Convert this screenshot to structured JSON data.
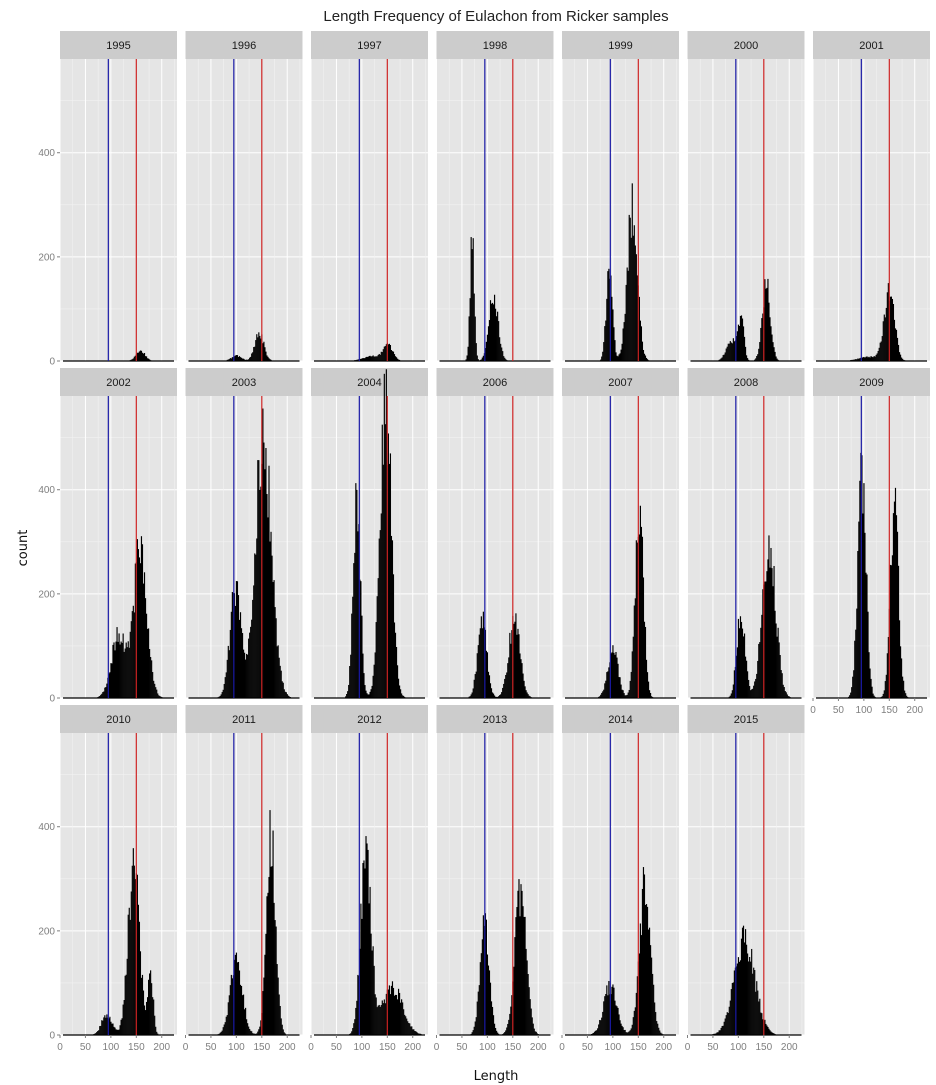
{
  "chart_data": {
    "type": "bar",
    "title": "Length Frequency of Eulachon from Ricker samples",
    "xlabel": "Length",
    "ylabel": "count",
    "xlim": [
      0,
      230
    ],
    "ylim": [
      0,
      580
    ],
    "x_ticks": [
      "0",
      "50",
      "100",
      "150",
      "200"
    ],
    "y_ticks": [
      "0",
      "200",
      "400"
    ],
    "reference_lines": [
      {
        "x": 95,
        "color": "#1a1aa6"
      },
      {
        "x": 150,
        "color": "#cc2222"
      }
    ],
    "panels": [
      {
        "label": "1995",
        "components": [
          [
            158,
            9,
            20
          ]
        ]
      },
      {
        "label": "1996",
        "components": [
          [
            100,
            10,
            10
          ],
          [
            145,
            9,
            52
          ]
        ]
      },
      {
        "label": "1997",
        "components": [
          [
            125,
            20,
            10
          ],
          [
            152,
            9,
            26
          ]
        ]
      },
      {
        "label": "1998",
        "components": [
          [
            70,
            4,
            235
          ],
          [
            112,
            9,
            125
          ]
        ]
      },
      {
        "label": "1999",
        "components": [
          [
            93,
            6,
            178
          ],
          [
            138,
            10,
            290
          ]
        ]
      },
      {
        "label": "2000",
        "components": [
          [
            88,
            11,
            40
          ],
          [
            106,
            5,
            80
          ],
          [
            155,
            8,
            145
          ]
        ]
      },
      {
        "label": "2001",
        "components": [
          [
            150,
            10,
            135
          ],
          [
            110,
            20,
            8
          ]
        ]
      },
      {
        "label": "2002",
        "components": [
          [
            115,
            14,
            120
          ],
          [
            158,
            13,
            285
          ]
        ]
      },
      {
        "label": "2003",
        "components": [
          [
            98,
            11,
            200
          ],
          [
            153,
            16,
            495
          ]
        ]
      },
      {
        "label": "2004",
        "components": [
          [
            90,
            7,
            395
          ],
          [
            147,
            11,
            560
          ]
        ]
      },
      {
        "label": "2006",
        "components": [
          [
            90,
            9,
            145
          ],
          [
            153,
            11,
            150
          ]
        ]
      },
      {
        "label": "2007",
        "components": [
          [
            100,
            10,
            95
          ],
          [
            152,
            8,
            360
          ]
        ]
      },
      {
        "label": "2008",
        "components": [
          [
            105,
            8,
            170
          ],
          [
            160,
            13,
            300
          ]
        ]
      },
      {
        "label": "2009",
        "components": [
          [
            96,
            8,
            440
          ],
          [
            160,
            8,
            365
          ]
        ]
      },
      {
        "label": "2010",
        "components": [
          [
            92,
            10,
            40
          ],
          [
            145,
            11,
            325
          ],
          [
            178,
            5,
            118
          ]
        ]
      },
      {
        "label": "2011",
        "components": [
          [
            100,
            12,
            140
          ],
          [
            168,
            9,
            380
          ]
        ]
      },
      {
        "label": "2012",
        "components": [
          [
            108,
            10,
            360
          ],
          [
            160,
            20,
            90
          ]
        ]
      },
      {
        "label": "2013",
        "components": [
          [
            95,
            9,
            220
          ],
          [
            165,
            11,
            275
          ]
        ]
      },
      {
        "label": "2014",
        "components": [
          [
            95,
            13,
            95
          ],
          [
            163,
            11,
            285
          ]
        ]
      },
      {
        "label": "2015",
        "components": [
          [
            112,
            20,
            185
          ]
        ]
      }
    ]
  }
}
